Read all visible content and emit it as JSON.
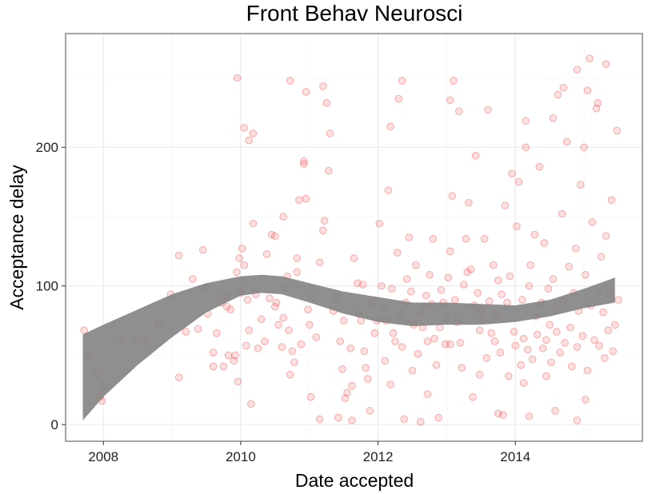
{
  "chart_data": {
    "type": "scatter",
    "title": "Front Behav Neurosci",
    "xlabel": "Date accepted",
    "ylabel": "Acceptance delay",
    "xlim": [
      2007.45,
      2015.85
    ],
    "ylim": [
      -12,
      282
    ],
    "x_ticks": [
      2008,
      2010,
      2012,
      2014
    ],
    "x_tick_labels": [
      "2008",
      "2010",
      "2012",
      "2014"
    ],
    "y_ticks": [
      0,
      100,
      200
    ],
    "y_tick_labels": [
      "0",
      "100",
      "200"
    ],
    "grid": true,
    "point_color": "#ff0000",
    "band_color": "#808080",
    "smooth_band": [
      {
        "x": 2007.7,
        "lower": 3,
        "upper": 65
      },
      {
        "x": 2008.0,
        "lower": 20,
        "upper": 72
      },
      {
        "x": 2008.5,
        "lower": 43,
        "upper": 83
      },
      {
        "x": 2009.0,
        "lower": 63,
        "upper": 94
      },
      {
        "x": 2009.5,
        "lower": 81,
        "upper": 102
      },
      {
        "x": 2010.0,
        "lower": 93,
        "upper": 107
      },
      {
        "x": 2010.3,
        "lower": 95,
        "upper": 108
      },
      {
        "x": 2010.6,
        "lower": 94,
        "upper": 107
      },
      {
        "x": 2011.0,
        "lower": 88,
        "upper": 102
      },
      {
        "x": 2011.5,
        "lower": 80,
        "upper": 96
      },
      {
        "x": 2012.0,
        "lower": 74,
        "upper": 92
      },
      {
        "x": 2012.5,
        "lower": 71,
        "upper": 88
      },
      {
        "x": 2013.0,
        "lower": 72,
        "upper": 88
      },
      {
        "x": 2013.5,
        "lower": 72,
        "upper": 87
      },
      {
        "x": 2014.0,
        "lower": 74,
        "upper": 86
      },
      {
        "x": 2014.5,
        "lower": 78,
        "upper": 90
      },
      {
        "x": 2015.0,
        "lower": 84,
        "upper": 98
      },
      {
        "x": 2015.45,
        "lower": 88,
        "upper": 106
      }
    ],
    "points": [
      [
        2007.72,
        68
      ],
      [
        2007.8,
        49
      ],
      [
        2007.92,
        37
      ],
      [
        2007.95,
        20
      ],
      [
        2007.98,
        17
      ],
      [
        2008.0,
        28
      ],
      [
        2008.28,
        61
      ],
      [
        2008.5,
        62
      ],
      [
        2008.62,
        60
      ],
      [
        2008.8,
        73
      ],
      [
        2008.98,
        94
      ],
      [
        2009.1,
        34
      ],
      [
        2009.1,
        122
      ],
      [
        2009.2,
        67
      ],
      [
        2009.3,
        105
      ],
      [
        2009.38,
        69
      ],
      [
        2009.45,
        126
      ],
      [
        2009.5,
        99
      ],
      [
        2009.52,
        80
      ],
      [
        2009.6,
        42
      ],
      [
        2009.6,
        52
      ],
      [
        2009.65,
        66
      ],
      [
        2009.72,
        88
      ],
      [
        2009.75,
        42
      ],
      [
        2009.78,
        93
      ],
      [
        2009.8,
        85
      ],
      [
        2009.82,
        50
      ],
      [
        2009.85,
        83
      ],
      [
        2009.9,
        46
      ],
      [
        2009.92,
        50
      ],
      [
        2009.94,
        110
      ],
      [
        2009.96,
        31
      ],
      [
        2009.98,
        120
      ],
      [
        2010.0,
        95
      ],
      [
        2010.02,
        127
      ],
      [
        2010.05,
        115
      ],
      [
        2010.08,
        57
      ],
      [
        2010.1,
        90
      ],
      [
        2010.12,
        68
      ],
      [
        2010.15,
        15
      ],
      [
        2010.18,
        145
      ],
      [
        2010.22,
        94
      ],
      [
        2010.25,
        55
      ],
      [
        2010.3,
        76
      ],
      [
        2010.35,
        60
      ],
      [
        2010.38,
        123
      ],
      [
        2010.42,
        91
      ],
      [
        2010.45,
        137
      ],
      [
        2010.5,
        136
      ],
      [
        2010.52,
        88
      ],
      [
        2010.55,
        72
      ],
      [
        2010.6,
        56
      ],
      [
        2010.62,
        150
      ],
      [
        2010.65,
        99
      ],
      [
        2010.68,
        107
      ],
      [
        2010.7,
        68
      ],
      [
        2010.72,
        36
      ],
      [
        2010.75,
        53
      ],
      [
        2010.78,
        45
      ],
      [
        2010.82,
        110
      ],
      [
        2010.85,
        162
      ],
      [
        2010.88,
        58
      ],
      [
        2010.92,
        190
      ],
      [
        2010.95,
        163
      ],
      [
        2010.98,
        83
      ],
      [
        2011.0,
        72
      ],
      [
        2011.02,
        20
      ],
      [
        2011.05,
        92
      ],
      [
        2011.1,
        63
      ],
      [
        2011.15,
        4
      ],
      [
        2011.2,
        140
      ],
      [
        2011.22,
        147
      ],
      [
        2011.25,
        232
      ],
      [
        2011.28,
        183
      ],
      [
        2011.3,
        210
      ],
      [
        2011.35,
        82
      ],
      [
        2011.4,
        92
      ],
      [
        2011.45,
        60
      ],
      [
        2011.48,
        40
      ],
      [
        2011.5,
        75
      ],
      [
        2011.52,
        19
      ],
      [
        2011.55,
        23
      ],
      [
        2011.6,
        55
      ],
      [
        2011.62,
        28
      ],
      [
        2011.65,
        120
      ],
      [
        2011.7,
        102
      ],
      [
        2011.72,
        80
      ],
      [
        2011.75,
        75
      ],
      [
        2011.78,
        101
      ],
      [
        2011.8,
        53
      ],
      [
        2011.82,
        41
      ],
      [
        2011.85,
        33
      ],
      [
        2011.88,
        10
      ],
      [
        2011.9,
        88
      ],
      [
        2011.95,
        66
      ],
      [
        2011.98,
        75
      ],
      [
        2012.02,
        145
      ],
      [
        2012.05,
        100
      ],
      [
        2012.08,
        84
      ],
      [
        2012.1,
        46
      ],
      [
        2012.12,
        75
      ],
      [
        2012.15,
        169
      ],
      [
        2012.18,
        215
      ],
      [
        2012.2,
        98
      ],
      [
        2012.22,
        66
      ],
      [
        2012.25,
        60
      ],
      [
        2012.28,
        124
      ],
      [
        2012.3,
        235
      ],
      [
        2012.32,
        80
      ],
      [
        2012.35,
        56
      ],
      [
        2012.38,
        4
      ],
      [
        2012.4,
        88
      ],
      [
        2012.42,
        105
      ],
      [
        2012.45,
        135
      ],
      [
        2012.48,
        96
      ],
      [
        2012.5,
        39
      ],
      [
        2012.52,
        72
      ],
      [
        2012.55,
        115
      ],
      [
        2012.58,
        51
      ],
      [
        2012.6,
        80
      ],
      [
        2012.62,
        2
      ],
      [
        2012.65,
        70
      ],
      [
        2012.68,
        85
      ],
      [
        2012.7,
        93
      ],
      [
        2012.72,
        60
      ],
      [
        2012.75,
        108
      ],
      [
        2012.78,
        87
      ],
      [
        2012.8,
        134
      ],
      [
        2012.82,
        62
      ],
      [
        2012.85,
        43
      ],
      [
        2012.88,
        5
      ],
      [
        2012.9,
        70
      ],
      [
        2012.92,
        97
      ],
      [
        2012.95,
        88
      ],
      [
        2012.98,
        58
      ],
      [
        2013.0,
        77
      ],
      [
        2013.02,
        106
      ],
      [
        2013.05,
        125
      ],
      [
        2013.08,
        165
      ],
      [
        2013.1,
        248
      ],
      [
        2013.12,
        90
      ],
      [
        2013.15,
        74
      ],
      [
        2013.18,
        226
      ],
      [
        2013.2,
        59
      ],
      [
        2013.22,
        41
      ],
      [
        2013.25,
        101
      ],
      [
        2013.28,
        134
      ],
      [
        2013.3,
        110
      ],
      [
        2013.32,
        160
      ],
      [
        2013.35,
        112
      ],
      [
        2013.38,
        20
      ],
      [
        2013.4,
        86
      ],
      [
        2013.42,
        194
      ],
      [
        2013.45,
        95
      ],
      [
        2013.48,
        68
      ],
      [
        2013.5,
        83
      ],
      [
        2013.52,
        76
      ],
      [
        2013.55,
        134
      ],
      [
        2013.58,
        48
      ],
      [
        2013.6,
        227
      ],
      [
        2013.62,
        89
      ],
      [
        2013.65,
        66
      ],
      [
        2013.68,
        115
      ],
      [
        2013.7,
        60
      ],
      [
        2013.72,
        79
      ],
      [
        2013.75,
        104
      ],
      [
        2013.78,
        52
      ],
      [
        2013.8,
        94
      ],
      [
        2013.82,
        7
      ],
      [
        2013.85,
        158
      ],
      [
        2013.88,
        88
      ],
      [
        2013.9,
        35
      ],
      [
        2013.92,
        107
      ],
      [
        2013.95,
        181
      ],
      [
        2013.98,
        67
      ],
      [
        2014.0,
        57
      ],
      [
        2014.02,
        143
      ],
      [
        2014.05,
        175
      ],
      [
        2014.08,
        43
      ],
      [
        2014.1,
        90
      ],
      [
        2014.12,
        62
      ],
      [
        2014.15,
        200
      ],
      [
        2014.18,
        54
      ],
      [
        2014.2,
        100
      ],
      [
        2014.22,
        115
      ],
      [
        2014.25,
        47
      ],
      [
        2014.28,
        137
      ],
      [
        2014.3,
        78
      ],
      [
        2014.32,
        65
      ],
      [
        2014.35,
        186
      ],
      [
        2014.38,
        88
      ],
      [
        2014.4,
        55
      ],
      [
        2014.42,
        131
      ],
      [
        2014.45,
        61
      ],
      [
        2014.48,
        98
      ],
      [
        2014.5,
        72
      ],
      [
        2014.52,
        45
      ],
      [
        2014.55,
        105
      ],
      [
        2014.58,
        83
      ],
      [
        2014.6,
        67
      ],
      [
        2014.62,
        238
      ],
      [
        2014.65,
        52
      ],
      [
        2014.68,
        152
      ],
      [
        2014.7,
        89
      ],
      [
        2014.72,
        59
      ],
      [
        2014.75,
        204
      ],
      [
        2014.78,
        114
      ],
      [
        2014.8,
        70
      ],
      [
        2014.82,
        42
      ],
      [
        2014.85,
        95
      ],
      [
        2014.88,
        127
      ],
      [
        2014.9,
        56
      ],
      [
        2014.92,
        82
      ],
      [
        2014.95,
        173
      ],
      [
        2014.98,
        64
      ],
      [
        2015.0,
        200
      ],
      [
        2015.02,
        108
      ],
      [
        2015.05,
        39
      ],
      [
        2015.08,
        264
      ],
      [
        2015.1,
        86
      ],
      [
        2015.12,
        146
      ],
      [
        2015.15,
        61
      ],
      [
        2015.18,
        228
      ],
      [
        2015.2,
        95
      ],
      [
        2015.22,
        57
      ],
      [
        2015.25,
        121
      ],
      [
        2015.28,
        81
      ],
      [
        2015.3,
        48
      ],
      [
        2015.32,
        136
      ],
      [
        2015.35,
        68
      ],
      [
        2015.38,
        94
      ],
      [
        2015.4,
        162
      ],
      [
        2015.42,
        53
      ],
      [
        2015.45,
        72
      ],
      [
        2015.48,
        212
      ],
      [
        2015.5,
        90
      ],
      [
        2015.02,
        18
      ],
      [
        2014.58,
        10
      ],
      [
        2014.2,
        6
      ],
      [
        2013.75,
        8
      ],
      [
        2014.9,
        3
      ],
      [
        2011.42,
        5
      ],
      [
        2011.62,
        3
      ],
      [
        2012.18,
        29
      ],
      [
        2012.72,
        22
      ],
      [
        2014.12,
        30
      ],
      [
        2014.45,
        35
      ],
      [
        2013.05,
        58
      ],
      [
        2013.48,
        36
      ],
      [
        2011.15,
        117
      ],
      [
        2010.82,
        120
      ],
      [
        2010.5,
        85
      ],
      [
        2010.62,
        77
      ],
      [
        2010.12,
        205
      ],
      [
        2010.18,
        210
      ],
      [
        2009.95,
        250
      ],
      [
        2010.05,
        214
      ],
      [
        2010.72,
        248
      ],
      [
        2010.95,
        240
      ],
      [
        2010.92,
        188
      ],
      [
        2011.2,
        244
      ],
      [
        2012.35,
        248
      ],
      [
        2013.05,
        234
      ],
      [
        2014.15,
        219
      ],
      [
        2014.7,
        243
      ],
      [
        2015.2,
        232
      ],
      [
        2015.05,
        241
      ],
      [
        2015.32,
        260
      ],
      [
        2014.9,
        256
      ],
      [
        2014.55,
        221
      ]
    ]
  }
}
